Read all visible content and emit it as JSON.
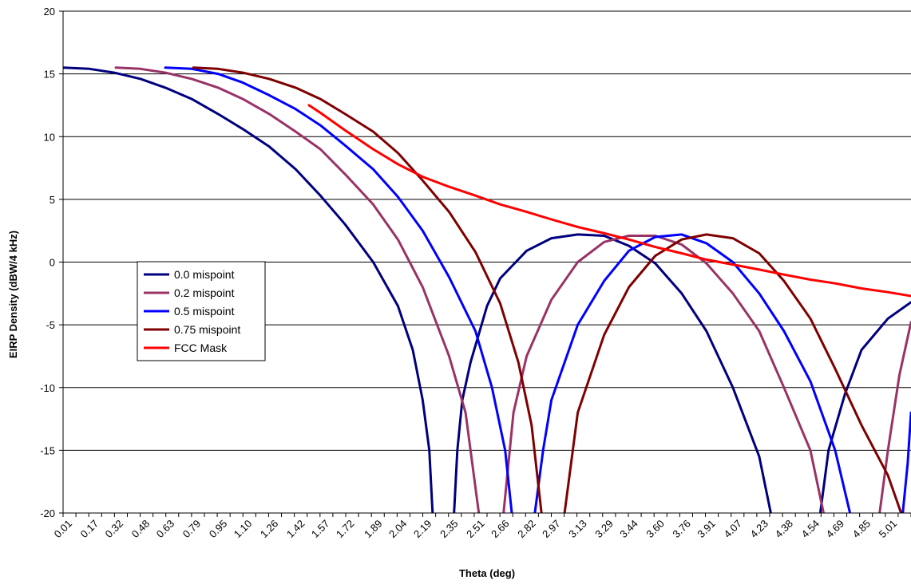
{
  "chart_data": {
    "type": "line",
    "title": "",
    "xlabel": "Theta (deg)",
    "ylabel": "EIRP Density (dBW/4 kHz)",
    "xlim": [
      0.01,
      5.15
    ],
    "ylim": [
      -20,
      20
    ],
    "y_ticks": [
      "20",
      "15",
      "10",
      "5",
      "0",
      "-5",
      "-10",
      "-15",
      "-20"
    ],
    "x_ticks": [
      "0.01",
      "0.17",
      "0.32",
      "0.48",
      "0.63",
      "0.79",
      "0.95",
      "1.10",
      "1.26",
      "1.42",
      "1.57",
      "1.72",
      "1.89",
      "2.04",
      "2.19",
      "2.35",
      "2.51",
      "2.66",
      "2.82",
      "2.97",
      "3.13",
      "3.29",
      "3.44",
      "3.60",
      "3.76",
      "3.91",
      "4.07",
      "4.23",
      "4.38",
      "4.54",
      "4.69",
      "4.85",
      "5.01"
    ],
    "grid": "horizontal",
    "legend_position": "left",
    "series": [
      {
        "name": "0.0 mispoint",
        "color": "#00007f",
        "points": [
          [
            0.01,
            15.5
          ],
          [
            0.17,
            15.4
          ],
          [
            0.32,
            15.1
          ],
          [
            0.48,
            14.6
          ],
          [
            0.63,
            13.9
          ],
          [
            0.79,
            13.0
          ],
          [
            0.95,
            11.8
          ],
          [
            1.1,
            10.6
          ],
          [
            1.26,
            9.2
          ],
          [
            1.42,
            7.4
          ],
          [
            1.57,
            5.3
          ],
          [
            1.72,
            3.0
          ],
          [
            1.89,
            0.0
          ],
          [
            2.04,
            -3.5
          ],
          [
            2.13,
            -7.0
          ],
          [
            2.19,
            -11.0
          ],
          [
            2.23,
            -15.0
          ],
          [
            2.25,
            -20.0
          ],
          null,
          [
            2.38,
            -20.0
          ],
          [
            2.4,
            -15.0
          ],
          [
            2.43,
            -11.0
          ],
          [
            2.48,
            -8.0
          ],
          [
            2.58,
            -3.5
          ],
          [
            2.66,
            -1.3
          ],
          [
            2.82,
            0.9
          ],
          [
            2.97,
            1.9
          ],
          [
            3.13,
            2.2
          ],
          [
            3.29,
            2.1
          ],
          [
            3.44,
            1.3
          ],
          [
            3.6,
            -0.1
          ],
          [
            3.76,
            -2.5
          ],
          [
            3.91,
            -5.5
          ],
          [
            4.07,
            -10.0
          ],
          [
            4.23,
            -15.5
          ],
          [
            4.3,
            -20.0
          ],
          null,
          [
            4.6,
            -20.0
          ],
          [
            4.65,
            -15.0
          ],
          [
            4.75,
            -10.5
          ],
          [
            4.85,
            -7.0
          ],
          [
            5.01,
            -4.5
          ],
          [
            5.15,
            -3.2
          ]
        ]
      },
      {
        "name": "0.2 mispoint",
        "color": "#993366",
        "points": [
          [
            0.33,
            15.5
          ],
          [
            0.48,
            15.4
          ],
          [
            0.63,
            15.1
          ],
          [
            0.79,
            14.6
          ],
          [
            0.95,
            13.9
          ],
          [
            1.1,
            13.0
          ],
          [
            1.26,
            11.8
          ],
          [
            1.42,
            10.4
          ],
          [
            1.57,
            9.0
          ],
          [
            1.72,
            7.0
          ],
          [
            1.89,
            4.6
          ],
          [
            2.04,
            1.8
          ],
          [
            2.19,
            -2.0
          ],
          [
            2.35,
            -7.5
          ],
          [
            2.45,
            -12.0
          ],
          [
            2.53,
            -20.0
          ],
          null,
          [
            2.68,
            -20.0
          ],
          [
            2.74,
            -12.0
          ],
          [
            2.82,
            -7.5
          ],
          [
            2.97,
            -3.0
          ],
          [
            3.13,
            0.0
          ],
          [
            3.29,
            1.6
          ],
          [
            3.44,
            2.1
          ],
          [
            3.6,
            2.1
          ],
          [
            3.76,
            1.4
          ],
          [
            3.91,
            -0.1
          ],
          [
            4.07,
            -2.5
          ],
          [
            4.23,
            -5.5
          ],
          [
            4.38,
            -10.0
          ],
          [
            4.54,
            -15.0
          ],
          [
            4.62,
            -20.0
          ],
          null,
          [
            4.96,
            -20.0
          ],
          [
            5.01,
            -15.0
          ],
          [
            5.08,
            -9.0
          ],
          [
            5.15,
            -4.8
          ]
        ]
      },
      {
        "name": "0.5 mispoint",
        "color": "#0000ff",
        "points": [
          [
            0.63,
            15.5
          ],
          [
            0.79,
            15.4
          ],
          [
            0.95,
            15.0
          ],
          [
            1.1,
            14.3
          ],
          [
            1.26,
            13.3
          ],
          [
            1.42,
            12.2
          ],
          [
            1.57,
            10.9
          ],
          [
            1.72,
            9.3
          ],
          [
            1.89,
            7.4
          ],
          [
            2.04,
            5.2
          ],
          [
            2.19,
            2.5
          ],
          [
            2.35,
            -1.2
          ],
          [
            2.51,
            -5.5
          ],
          [
            2.61,
            -10.0
          ],
          [
            2.69,
            -15.0
          ],
          [
            2.73,
            -20.0
          ],
          null,
          [
            2.87,
            -20.0
          ],
          [
            2.92,
            -15.0
          ],
          [
            2.97,
            -11.0
          ],
          [
            3.13,
            -5.0
          ],
          [
            3.29,
            -1.5
          ],
          [
            3.44,
            0.9
          ],
          [
            3.6,
            2.0
          ],
          [
            3.76,
            2.2
          ],
          [
            3.91,
            1.5
          ],
          [
            4.07,
            0.0
          ],
          [
            4.23,
            -2.5
          ],
          [
            4.38,
            -5.5
          ],
          [
            4.54,
            -9.5
          ],
          [
            4.69,
            -15.0
          ],
          [
            4.78,
            -20.0
          ],
          null,
          [
            5.1,
            -20.0
          ],
          [
            5.13,
            -16.0
          ],
          [
            5.15,
            -12.0
          ]
        ]
      },
      {
        "name": "0.75 mispoint",
        "color": "#7f0000",
        "points": [
          [
            0.8,
            15.5
          ],
          [
            0.95,
            15.4
          ],
          [
            1.1,
            15.1
          ],
          [
            1.26,
            14.6
          ],
          [
            1.42,
            13.9
          ],
          [
            1.57,
            13.0
          ],
          [
            1.72,
            11.8
          ],
          [
            1.89,
            10.4
          ],
          [
            2.04,
            8.7
          ],
          [
            2.19,
            6.5
          ],
          [
            2.35,
            4.0
          ],
          [
            2.51,
            0.8
          ],
          [
            2.66,
            -3.3
          ],
          [
            2.77,
            -8.0
          ],
          [
            2.85,
            -13.0
          ],
          [
            2.91,
            -20.0
          ],
          null,
          [
            3.05,
            -20.0
          ],
          [
            3.13,
            -12.0
          ],
          [
            3.29,
            -5.8
          ],
          [
            3.44,
            -2.0
          ],
          [
            3.6,
            0.5
          ],
          [
            3.76,
            1.8
          ],
          [
            3.91,
            2.2
          ],
          [
            4.07,
            1.9
          ],
          [
            4.23,
            0.7
          ],
          [
            4.38,
            -1.5
          ],
          [
            4.54,
            -4.5
          ],
          [
            4.69,
            -8.5
          ],
          [
            4.85,
            -13.0
          ],
          [
            5.01,
            -17.0
          ],
          [
            5.09,
            -20.0
          ]
        ]
      },
      {
        "name": "FCC Mask",
        "color": "#ff0000",
        "points": [
          [
            1.5,
            12.5
          ],
          [
            1.57,
            11.9
          ],
          [
            1.72,
            10.5
          ],
          [
            1.89,
            9.0
          ],
          [
            2.04,
            7.8
          ],
          [
            2.19,
            6.8
          ],
          [
            2.35,
            6.0
          ],
          [
            2.51,
            5.3
          ],
          [
            2.66,
            4.6
          ],
          [
            2.82,
            4.0
          ],
          [
            2.97,
            3.4
          ],
          [
            3.13,
            2.8
          ],
          [
            3.29,
            2.3
          ],
          [
            3.44,
            1.8
          ],
          [
            3.6,
            1.2
          ],
          [
            3.76,
            0.7
          ],
          [
            3.91,
            0.2
          ],
          [
            4.07,
            -0.2
          ],
          [
            4.23,
            -0.6
          ],
          [
            4.38,
            -1.0
          ],
          [
            4.54,
            -1.4
          ],
          [
            4.69,
            -1.7
          ],
          [
            4.85,
            -2.1
          ],
          [
            5.01,
            -2.4
          ],
          [
            5.15,
            -2.7
          ]
        ]
      }
    ]
  }
}
